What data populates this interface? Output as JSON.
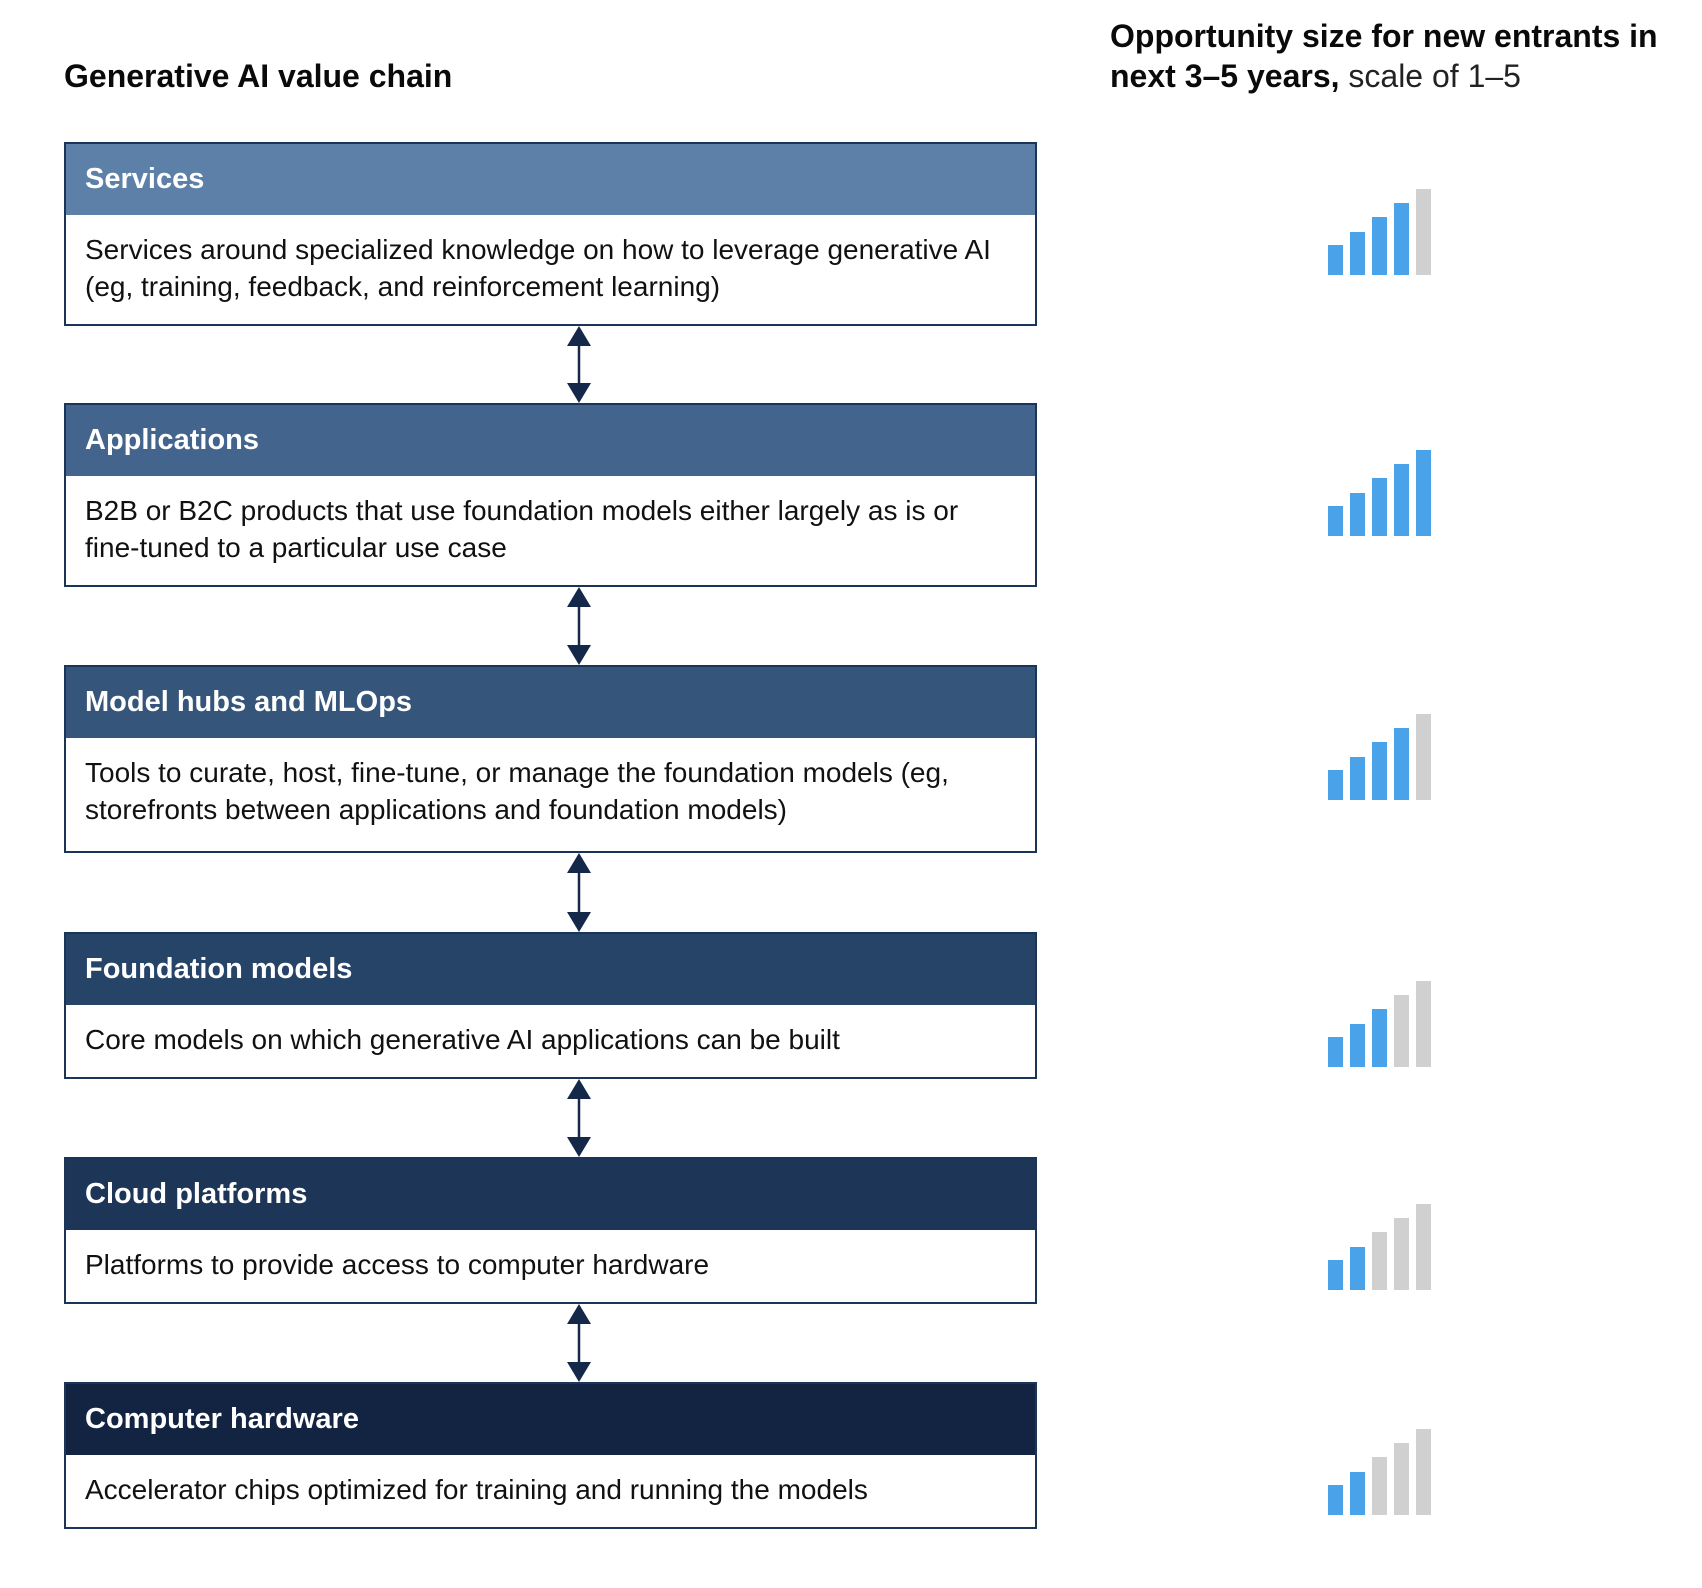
{
  "left_title": "Generative AI value chain",
  "right_title": {
    "bold": "Opportunity size for new entrants in next 3–5 years,",
    "normal": " scale of 1–5"
  },
  "colors": {
    "bar_active": "#4aa3e8",
    "bar_inactive": "#d0d0d0",
    "arrow": "#14284a",
    "border": "#1b3558"
  },
  "layers": [
    {
      "title": "Services",
      "description": "Services around specialized knowledge on how to leverage generative AI (eg, training, feedback, and reinforcement learning)",
      "header_color": "#5c80a8",
      "opportunity": 4
    },
    {
      "title": "Applications",
      "description": "B2B or B2C products that use foundation models either largely as is or fine-tuned to a particular use case",
      "header_color": "#43648c",
      "opportunity": 5
    },
    {
      "title": "Model hubs and MLOps",
      "description": "Tools to curate, host, fine-tune, or manage the foundation models (eg, storefronts between applications and foundation models)",
      "header_color": "#35557a",
      "opportunity": 4
    },
    {
      "title": "Foundation models",
      "description": "Core models on which generative AI applications can be built",
      "header_color": "#264368",
      "opportunity": 3
    },
    {
      "title": "Cloud platforms",
      "description": "Platforms to provide access to computer hardware",
      "header_color": "#1d3556",
      "opportunity": 2
    },
    {
      "title": "Computer hardware",
      "description": "Accelerator chips optimized for training and running the models",
      "header_color": "#132443",
      "opportunity": 2
    }
  ]
}
